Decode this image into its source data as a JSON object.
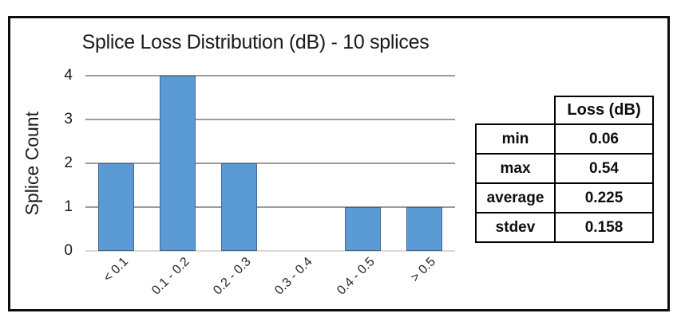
{
  "chart_data": {
    "type": "bar",
    "title": "Splice Loss Distribution (dB) - 10 splices",
    "ylabel": "Splice Count",
    "xlabel": "",
    "categories": [
      "< 0.1",
      "0.1 - 0.2",
      "0.2 - 0.3",
      "0.3 - 0.4",
      "0.4 - 0.5",
      "> 0.5"
    ],
    "values": [
      2,
      4,
      2,
      0,
      1,
      1
    ],
    "ylim": [
      0,
      4
    ],
    "yticks": [
      0,
      1,
      2,
      3,
      4
    ],
    "grid": true,
    "legend": "none",
    "bar_color": "#5B9BD5",
    "bar_border_color": "#44668C",
    "gridline_color": "#9B9B9B",
    "baseline_color": "#D9D9D9"
  },
  "stats_table": {
    "value_header": "Loss (dB)",
    "rows": [
      {
        "label": "min",
        "value": "0.06"
      },
      {
        "label": "max",
        "value": "0.54"
      },
      {
        "label": "average",
        "value": "0.225"
      },
      {
        "label": "stdev",
        "value": "0.158"
      }
    ]
  },
  "frame": {
    "border_color": "#0d0d0d",
    "background": "#FFFFFF"
  }
}
